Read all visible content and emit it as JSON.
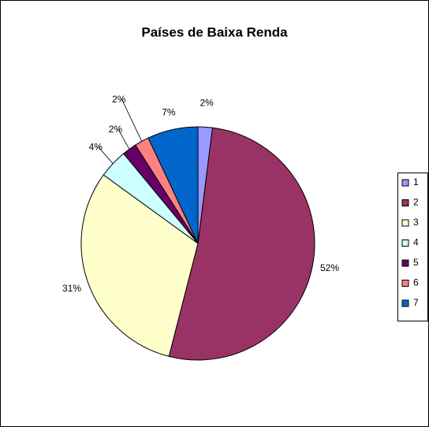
{
  "chart_data": {
    "type": "pie",
    "title": "Países de Baixa Renda",
    "categories": [
      "1",
      "2",
      "3",
      "4",
      "5",
      "6",
      "7"
    ],
    "values": [
      2,
      52,
      31,
      4,
      2,
      2,
      7
    ],
    "value_labels": [
      "2%",
      "52%",
      "31%",
      "4%",
      "2%",
      "2%",
      "7%"
    ],
    "colors": [
      "#9999ff",
      "#993366",
      "#ffffcc",
      "#ccffff",
      "#660066",
      "#ff8080",
      "#0066cc"
    ],
    "legend": "right"
  }
}
